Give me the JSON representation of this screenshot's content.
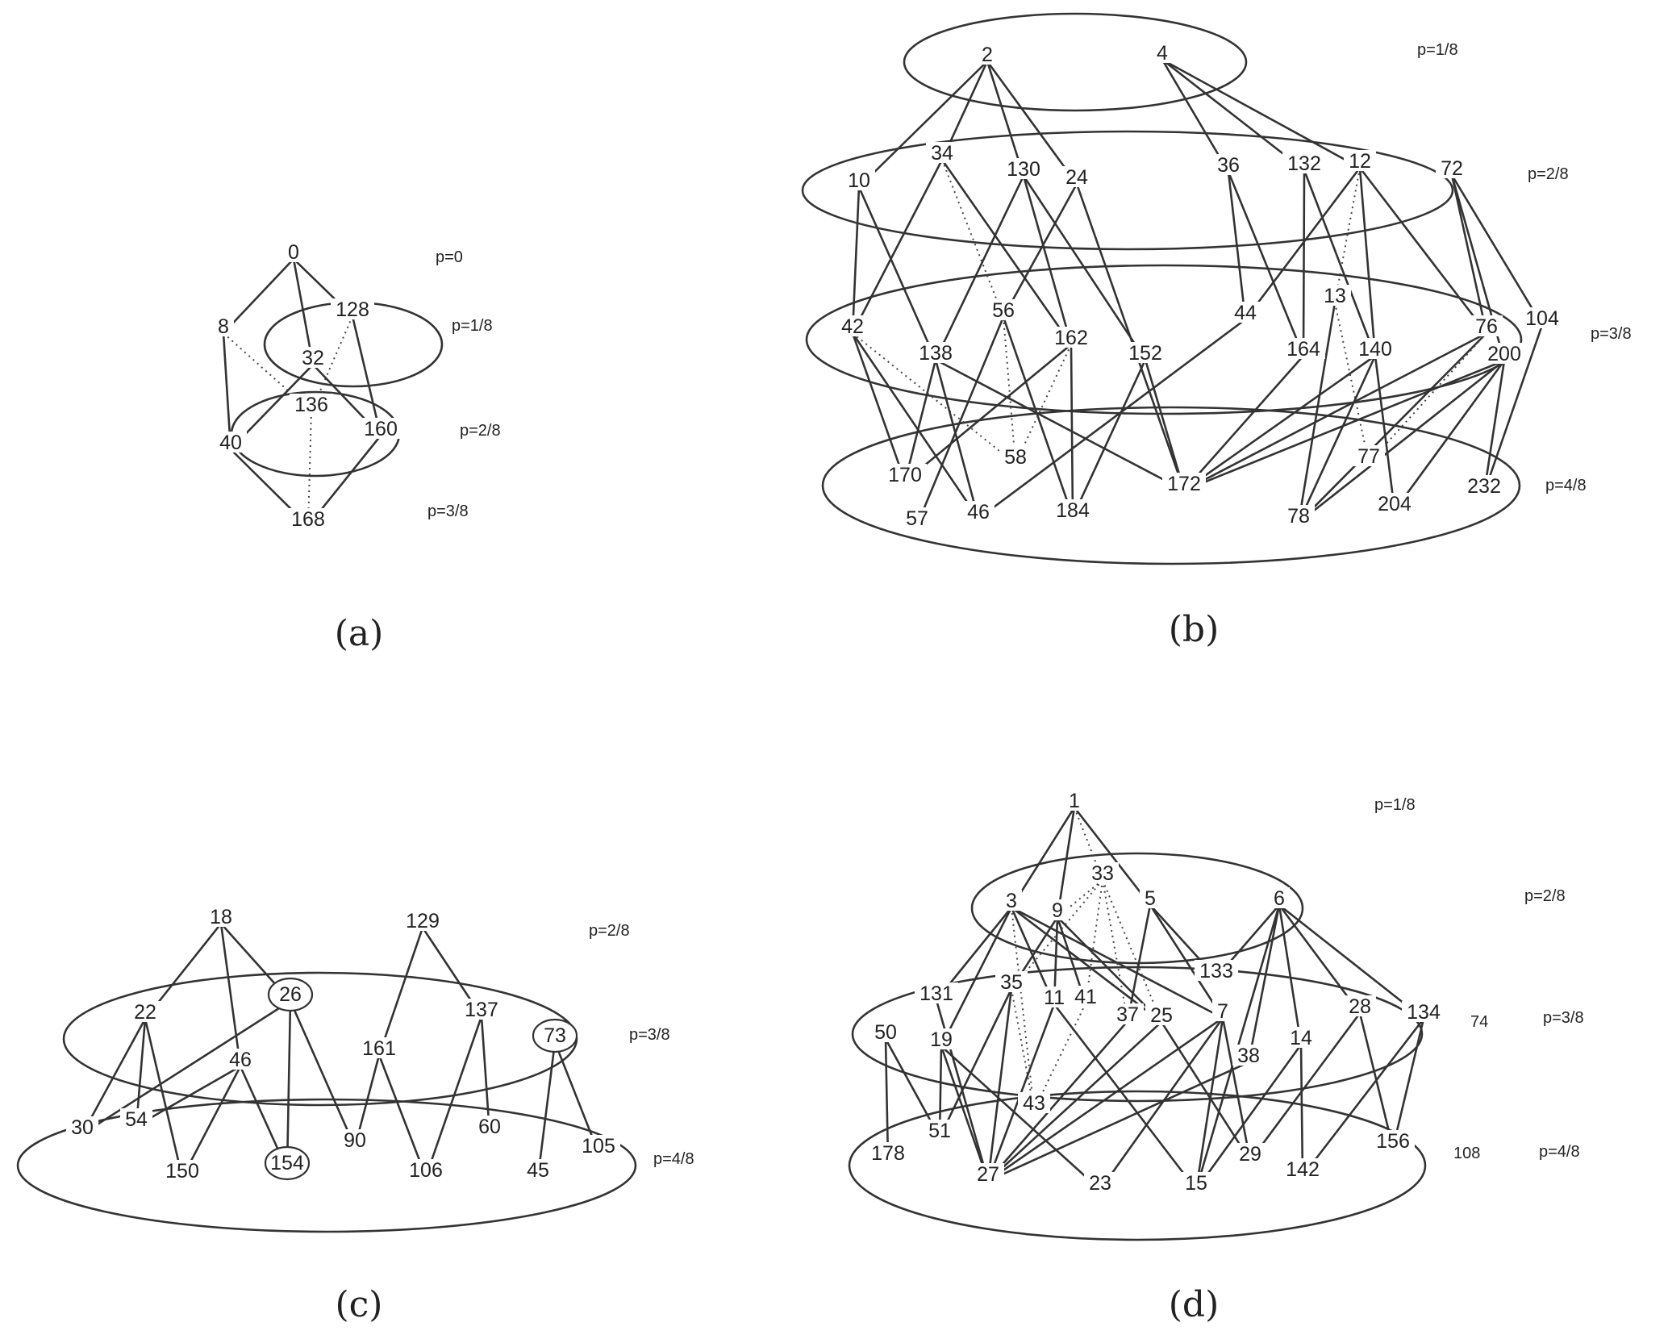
{
  "panels": [
    {
      "id": "a",
      "caption": "(a)",
      "levels": [
        {
          "label": "p=0"
        },
        {
          "label": "p=1/8"
        },
        {
          "label": "p=2/8"
        },
        {
          "label": "p=3/8"
        }
      ],
      "nodes": [
        "0",
        "8",
        "128",
        "32",
        "136",
        "40",
        "160",
        "168"
      ],
      "edges": [
        [
          "0",
          "8",
          "solid"
        ],
        [
          "0",
          "32",
          "solid"
        ],
        [
          "0",
          "128",
          "solid"
        ],
        [
          "8",
          "40",
          "solid"
        ],
        [
          "8",
          "136",
          "dotted"
        ],
        [
          "128",
          "136",
          "dotted"
        ],
        [
          "128",
          "160",
          "solid"
        ],
        [
          "32",
          "40",
          "solid"
        ],
        [
          "32",
          "160",
          "solid"
        ],
        [
          "136",
          "168",
          "dotted"
        ],
        [
          "40",
          "168",
          "solid"
        ],
        [
          "160",
          "168",
          "solid"
        ]
      ]
    },
    {
      "id": "b",
      "caption": "(b)",
      "levels": [
        {
          "label": "p=1/8"
        },
        {
          "label": "p=2/8"
        },
        {
          "label": "p=3/8"
        },
        {
          "label": "p=4/8"
        }
      ],
      "nodes": [
        "2",
        "4",
        "10",
        "34",
        "130",
        "24",
        "36",
        "132",
        "12",
        "72",
        "42",
        "56",
        "138",
        "162",
        "152",
        "44",
        "164",
        "13",
        "140",
        "76",
        "104",
        "200",
        "170",
        "58",
        "57",
        "46",
        "184",
        "172",
        "78",
        "77",
        "204",
        "232"
      ],
      "edges": [
        [
          "2",
          "10",
          "solid"
        ],
        [
          "2",
          "34",
          "solid"
        ],
        [
          "2",
          "130",
          "solid"
        ],
        [
          "2",
          "24",
          "solid"
        ],
        [
          "4",
          "36",
          "solid"
        ],
        [
          "4",
          "132",
          "solid"
        ],
        [
          "4",
          "12",
          "solid"
        ],
        [
          "10",
          "42",
          "solid"
        ],
        [
          "10",
          "138",
          "solid"
        ],
        [
          "34",
          "42",
          "solid"
        ],
        [
          "34",
          "56",
          "dotted"
        ],
        [
          "34",
          "162",
          "solid"
        ],
        [
          "130",
          "138",
          "solid"
        ],
        [
          "130",
          "152",
          "solid"
        ],
        [
          "130",
          "162",
          "solid"
        ],
        [
          "24",
          "56",
          "solid"
        ],
        [
          "24",
          "172",
          "solid"
        ],
        [
          "36",
          "44",
          "solid"
        ],
        [
          "36",
          "164",
          "solid"
        ],
        [
          "132",
          "164",
          "solid"
        ],
        [
          "132",
          "140",
          "solid"
        ],
        [
          "12",
          "44",
          "solid"
        ],
        [
          "12",
          "13",
          "dotted"
        ],
        [
          "12",
          "140",
          "solid"
        ],
        [
          "12",
          "76",
          "solid"
        ],
        [
          "72",
          "104",
          "solid"
        ],
        [
          "72",
          "76",
          "solid"
        ],
        [
          "72",
          "200",
          "solid"
        ],
        [
          "42",
          "170",
          "solid"
        ],
        [
          "42",
          "46",
          "solid"
        ],
        [
          "42",
          "58",
          "dotted"
        ],
        [
          "56",
          "57",
          "solid"
        ],
        [
          "56",
          "58",
          "dotted"
        ],
        [
          "56",
          "184",
          "solid"
        ],
        [
          "138",
          "170",
          "solid"
        ],
        [
          "138",
          "46",
          "solid"
        ],
        [
          "138",
          "172",
          "solid"
        ],
        [
          "162",
          "170",
          "solid"
        ],
        [
          "162",
          "184",
          "solid"
        ],
        [
          "162",
          "58",
          "dotted"
        ],
        [
          "152",
          "172",
          "solid"
        ],
        [
          "152",
          "184",
          "solid"
        ],
        [
          "44",
          "46",
          "solid"
        ],
        [
          "164",
          "172",
          "solid"
        ],
        [
          "13",
          "78",
          "solid"
        ],
        [
          "13",
          "77",
          "dotted"
        ],
        [
          "140",
          "172",
          "solid"
        ],
        [
          "140",
          "78",
          "solid"
        ],
        [
          "140",
          "204",
          "solid"
        ],
        [
          "76",
          "172",
          "solid"
        ],
        [
          "76",
          "78",
          "solid"
        ],
        [
          "76",
          "77",
          "dotted"
        ],
        [
          "104",
          "232",
          "solid"
        ],
        [
          "200",
          "78",
          "solid"
        ],
        [
          "200",
          "204",
          "solid"
        ],
        [
          "200",
          "232",
          "solid"
        ],
        [
          "200",
          "172",
          "solid"
        ]
      ]
    },
    {
      "id": "c",
      "caption": "(c)",
      "levels": [
        {
          "label": "p=2/8"
        },
        {
          "label": "p=3/8"
        },
        {
          "label": "p=4/8"
        }
      ],
      "nodes": [
        "18",
        "129",
        "22",
        "26",
        "46",
        "161",
        "137",
        "73",
        "30",
        "54",
        "150",
        "154",
        "90",
        "106",
        "60",
        "45",
        "105"
      ],
      "circled": [
        "26",
        "73",
        "154"
      ],
      "edges": [
        [
          "18",
          "22",
          "solid"
        ],
        [
          "18",
          "46",
          "solid"
        ],
        [
          "18",
          "26",
          "solid"
        ],
        [
          "129",
          "161",
          "solid"
        ],
        [
          "129",
          "137",
          "solid"
        ],
        [
          "22",
          "30",
          "solid"
        ],
        [
          "22",
          "54",
          "solid"
        ],
        [
          "22",
          "150",
          "solid"
        ],
        [
          "26",
          "30",
          "solid"
        ],
        [
          "26",
          "154",
          "solid"
        ],
        [
          "26",
          "90",
          "solid"
        ],
        [
          "46",
          "54",
          "solid"
        ],
        [
          "46",
          "150",
          "solid"
        ],
        [
          "46",
          "154",
          "solid"
        ],
        [
          "161",
          "90",
          "solid"
        ],
        [
          "161",
          "106",
          "solid"
        ],
        [
          "137",
          "106",
          "solid"
        ],
        [
          "137",
          "60",
          "solid"
        ],
        [
          "73",
          "45",
          "solid"
        ],
        [
          "73",
          "105",
          "solid"
        ]
      ]
    },
    {
      "id": "d",
      "caption": "(d)",
      "levels": [
        {
          "label": "p=1/8"
        },
        {
          "label": "p=2/8"
        },
        {
          "label": "p=3/8"
        },
        {
          "label": "p=4/8"
        }
      ],
      "extra_labels": [
        "74",
        "108"
      ],
      "nodes": [
        "1",
        "33",
        "3",
        "9",
        "5",
        "6",
        "131",
        "35",
        "11",
        "41",
        "37",
        "25",
        "133",
        "7",
        "28",
        "134",
        "50",
        "19",
        "38",
        "14",
        "43",
        "51",
        "178",
        "27",
        "23",
        "15",
        "29",
        "142",
        "156"
      ],
      "edges": [
        [
          "1",
          "3",
          "solid"
        ],
        [
          "1",
          "9",
          "solid"
        ],
        [
          "1",
          "5",
          "solid"
        ],
        [
          "1",
          "33",
          "dotted"
        ],
        [
          "3",
          "131",
          "solid"
        ],
        [
          "3",
          "19",
          "solid"
        ],
        [
          "3",
          "11",
          "solid"
        ],
        [
          "3",
          "25",
          "solid"
        ],
        [
          "3",
          "7",
          "solid"
        ],
        [
          "3",
          "43",
          "dotted"
        ],
        [
          "9",
          "35",
          "solid"
        ],
        [
          "9",
          "11",
          "solid"
        ],
        [
          "9",
          "41",
          "solid"
        ],
        [
          "9",
          "25",
          "solid"
        ],
        [
          "9",
          "33",
          "dotted"
        ],
        [
          "33",
          "35",
          "dotted"
        ],
        [
          "33",
          "37",
          "dotted"
        ],
        [
          "33",
          "41",
          "dotted"
        ],
        [
          "33",
          "25",
          "dotted"
        ],
        [
          "5",
          "37",
          "solid"
        ],
        [
          "5",
          "133",
          "solid"
        ],
        [
          "5",
          "7",
          "solid"
        ],
        [
          "6",
          "38",
          "solid"
        ],
        [
          "6",
          "14",
          "solid"
        ],
        [
          "6",
          "28",
          "solid"
        ],
        [
          "6",
          "134",
          "solid"
        ],
        [
          "6",
          "133",
          "solid"
        ],
        [
          "6",
          "15",
          "solid"
        ],
        [
          "35",
          "27",
          "solid"
        ],
        [
          "35",
          "51",
          "solid"
        ],
        [
          "35",
          "43",
          "dotted"
        ],
        [
          "11",
          "27",
          "solid"
        ],
        [
          "11",
          "15",
          "solid"
        ],
        [
          "41",
          "43",
          "dotted"
        ],
        [
          "37",
          "27",
          "solid"
        ],
        [
          "25",
          "27",
          "solid"
        ],
        [
          "25",
          "29",
          "solid"
        ],
        [
          "7",
          "27",
          "solid"
        ],
        [
          "7",
          "23",
          "solid"
        ],
        [
          "7",
          "15",
          "solid"
        ],
        [
          "7",
          "29",
          "solid"
        ],
        [
          "38",
          "27",
          "solid"
        ],
        [
          "14",
          "15",
          "solid"
        ],
        [
          "14",
          "142",
          "solid"
        ],
        [
          "28",
          "29",
          "solid"
        ],
        [
          "28",
          "156",
          "solid"
        ],
        [
          "134",
          "156",
          "solid"
        ],
        [
          "134",
          "142",
          "solid"
        ],
        [
          "50",
          "51",
          "solid"
        ],
        [
          "50",
          "178",
          "solid"
        ],
        [
          "19",
          "51",
          "solid"
        ],
        [
          "19",
          "27",
          "solid"
        ],
        [
          "19",
          "23",
          "solid"
        ],
        [
          "131",
          "27",
          "solid"
        ]
      ]
    }
  ]
}
